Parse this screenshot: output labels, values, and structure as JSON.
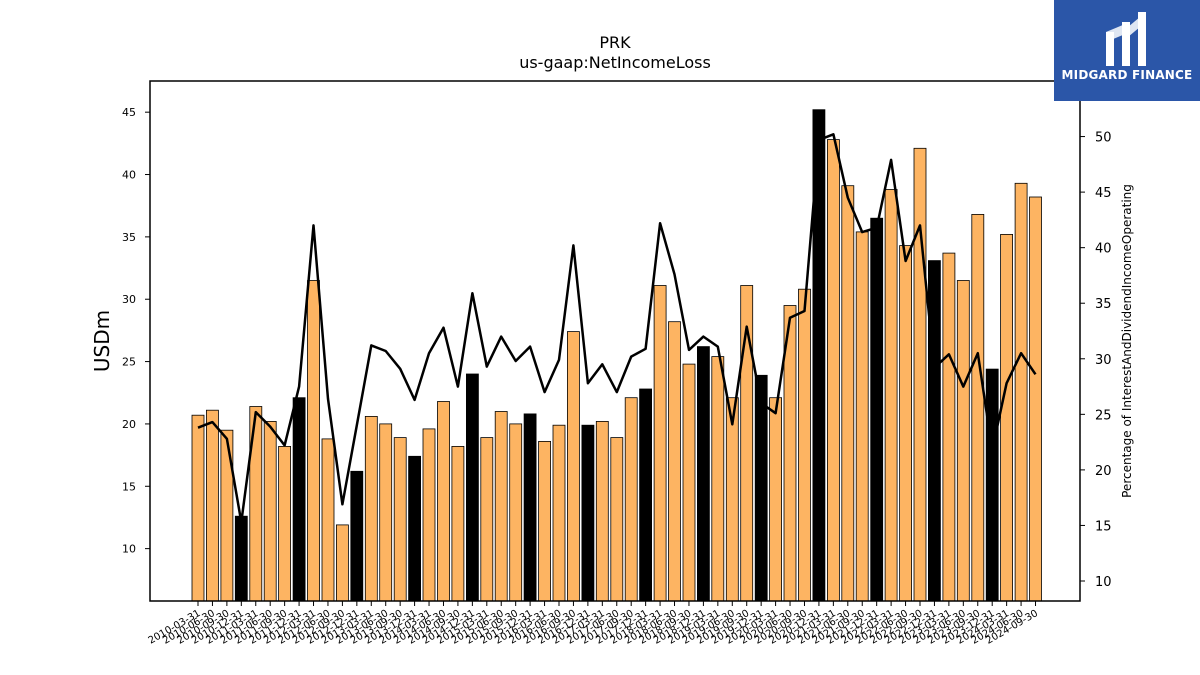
{
  "chart_data": {
    "type": "bar+line",
    "title": "PRK",
    "subtitle": "us-gaap:NetIncomeLoss",
    "ylabel": "USDm",
    "y2label": "Percentage of InterestAndDividendIncomeOperating",
    "ylim": [
      5.8,
      47.5
    ],
    "y2lim": [
      8.2,
      55.0
    ],
    "yticks": [
      10,
      15,
      20,
      25,
      30,
      35,
      40,
      45
    ],
    "y2ticks": [
      10,
      15,
      20,
      25,
      30,
      35,
      40,
      45,
      50
    ],
    "categories": [
      "2010-03-31",
      "2010-06-30",
      "2010-09-30",
      "2010-12-31",
      "2011-03-31",
      "2011-06-30",
      "2011-09-30",
      "2011-12-31",
      "2012-03-31",
      "2012-06-30",
      "2012-09-30",
      "2012-12-31",
      "2013-03-31",
      "2013-06-30",
      "2013-09-30",
      "2013-12-31",
      "2014-03-31",
      "2014-06-30",
      "2014-09-30",
      "2014-12-31",
      "2015-03-31",
      "2015-06-30",
      "2015-09-30",
      "2015-12-31",
      "2016-03-31",
      "2016-06-30",
      "2016-09-30",
      "2016-12-31",
      "2017-03-31",
      "2017-06-30",
      "2017-09-30",
      "2017-12-31",
      "2018-03-31",
      "2018-06-30",
      "2018-09-30",
      "2018-12-31",
      "2019-03-31",
      "2019-06-30",
      "2019-09-30",
      "2019-12-31",
      "2020-03-31",
      "2020-06-30",
      "2020-09-30",
      "2020-12-31",
      "2021-03-31",
      "2021-06-30",
      "2021-09-30",
      "2021-12-31",
      "2022-03-31",
      "2022-06-30",
      "2022-09-30",
      "2022-12-31",
      "2023-03-31",
      "2023-06-30",
      "2023-09-30",
      "2023-12-31",
      "2024-03-31",
      "2024-06-30",
      "2024-09-30"
    ],
    "series": [
      {
        "role": "bars",
        "values": [
          20.7,
          21.1,
          19.5,
          12.6,
          21.4,
          20.2,
          18.2,
          22.1,
          31.5,
          18.8,
          11.9,
          16.2,
          20.6,
          20.0,
          18.9,
          17.4,
          19.6,
          21.8,
          18.2,
          24.0,
          18.9,
          21.0,
          20.0,
          20.8,
          18.6,
          19.9,
          27.4,
          19.9,
          20.2,
          18.9,
          22.1,
          22.8,
          31.1,
          28.2,
          24.8,
          26.2,
          25.4,
          22.1,
          31.1,
          23.9,
          22.1,
          29.5,
          30.8,
          45.2,
          42.8,
          39.1,
          35.4,
          36.5,
          38.8,
          34.3,
          42.1,
          33.1,
          33.7,
          31.5,
          36.8,
          24.4,
          35.2,
          39.3,
          38.2
        ],
        "highlight": [
          false,
          false,
          false,
          true,
          false,
          false,
          false,
          true,
          false,
          false,
          false,
          true,
          false,
          false,
          false,
          true,
          false,
          false,
          false,
          true,
          false,
          false,
          false,
          true,
          false,
          false,
          false,
          true,
          false,
          false,
          false,
          true,
          false,
          false,
          false,
          true,
          false,
          false,
          false,
          true,
          false,
          false,
          false,
          true,
          false,
          false,
          false,
          true,
          false,
          false,
          false,
          true,
          false,
          false,
          false,
          true,
          false,
          false,
          false
        ]
      },
      {
        "role": "line",
        "values": [
          23.8,
          24.3,
          22.8,
          15.3,
          25.2,
          23.9,
          22.2,
          27.5,
          42.0,
          26.4,
          16.9,
          24.0,
          31.2,
          30.7,
          29.1,
          26.3,
          30.5,
          32.8,
          27.5,
          35.9,
          29.3,
          32.0,
          29.8,
          31.1,
          27.0,
          29.9,
          40.2,
          27.8,
          29.5,
          27.0,
          30.2,
          30.9,
          42.2,
          37.6,
          30.8,
          32.0,
          31.1,
          24.1,
          32.9,
          26.0,
          25.1,
          33.7,
          34.3,
          49.7,
          50.2,
          44.5,
          41.4,
          41.8,
          47.9,
          38.8,
          42.0,
          29.2,
          30.4,
          27.5,
          30.5,
          21.8,
          27.8,
          30.5,
          28.6
        ]
      }
    ],
    "colors": {
      "bar": "#fdb462",
      "bar_highlight": "#000000",
      "bar_edge": "#000000",
      "line": "#000000"
    },
    "grid": false,
    "legend": "none"
  },
  "brand": {
    "name": "MIDGARD FINANCE",
    "color": "#2b56a8",
    "icon": "midgard-logo-icon"
  }
}
